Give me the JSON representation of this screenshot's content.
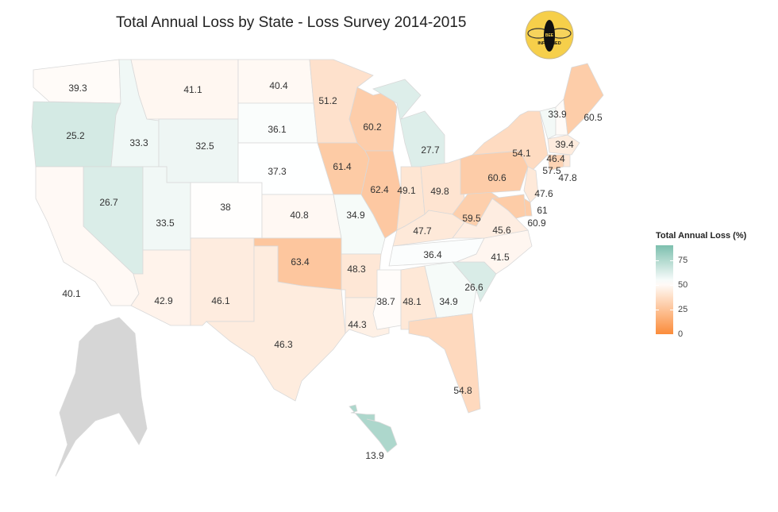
{
  "title": "Total Annual Loss by State - Loss Survey 2014-2015",
  "logo": {
    "text_top": "BEE",
    "text_bottom": "INFORMED",
    "color": "#f6cf4a"
  },
  "chart_data": {
    "type": "choropleth",
    "title": "Total Annual Loss by State - Loss Survey 2014-2015",
    "legend": {
      "title": "Total Annual Loss (%)",
      "ticks": [
        "0",
        "25",
        "50",
        "75"
      ],
      "range": [
        0,
        90
      ],
      "placement": "right"
    },
    "color_scale": {
      "low": "#7dbfae",
      "mid": "#ffffff",
      "mid_value": 37.5,
      "high": "#fb8c3a"
    },
    "no_data_color": "#d6d6d6",
    "values": {
      "WA": "39.3",
      "OR": "25.2",
      "ID": "33.3",
      "MT": "41.1",
      "WY": "32.5",
      "NV": "26.7",
      "CA": "40.1",
      "UT": "33.5",
      "AZ": "42.9",
      "CO": "38",
      "NM": "46.1",
      "ND": "40.4",
      "SD": "36.1",
      "NE": "37.3",
      "KS": "40.8",
      "OK": "63.4",
      "TX": "46.3",
      "MN": "51.2",
      "IA": "61.4",
      "MO": "34.9",
      "AR": "48.3",
      "LA": "44.3",
      "WI": "60.2",
      "IL": "62.4",
      "MI": "27.7",
      "IN": "49.1",
      "OH": "49.8",
      "KY": "47.7",
      "TN": "36.4",
      "MS": "38.7",
      "AL": "48.1",
      "GA": "34.9",
      "FL": "54.8",
      "SC": "26.6",
      "NC": "41.5",
      "VA": "45.6",
      "WV": "59.5",
      "PA": "60.6",
      "NY": "54.1",
      "VT": "33.9",
      "NH": "39.4",
      "ME": "60.5",
      "MA": "46.4",
      "CT": "57.5",
      "RI": "47.8",
      "NJ": "47.6",
      "DE": "60.9",
      "MD": "61",
      "HI": "13.9",
      "AK": null
    }
  }
}
